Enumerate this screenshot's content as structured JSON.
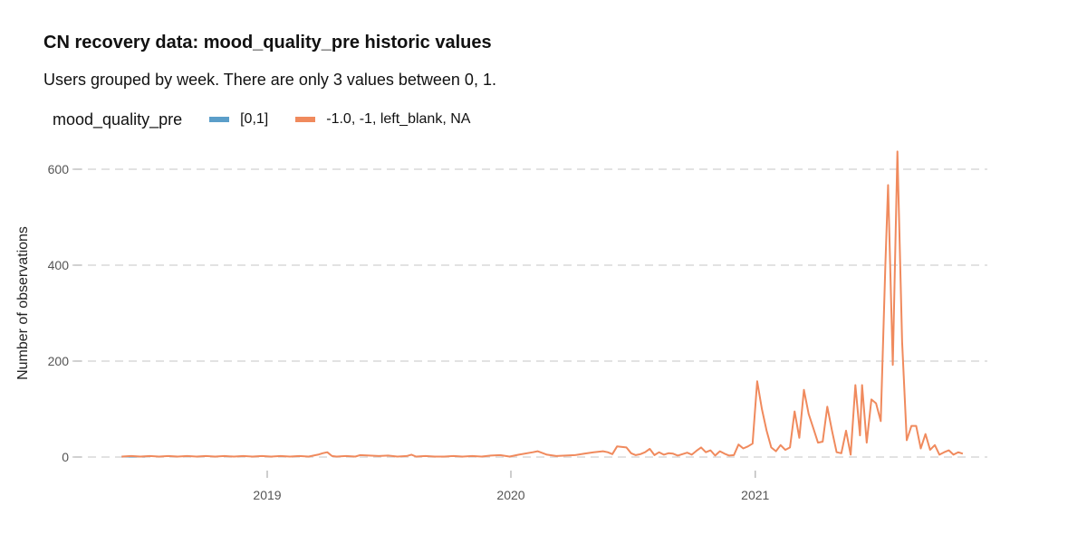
{
  "title": "CN recovery data: mood_quality_pre historic values",
  "subtitle": "Users grouped by week. There are only 3 values between 0, 1.",
  "legend": {
    "title": "mood_quality_pre",
    "items": [
      {
        "label": "[0,1]",
        "color": "#5B9EC9"
      },
      {
        "label": "-1.0, -1, left_blank, NA",
        "color": "#F08A5D"
      }
    ]
  },
  "chart_data": {
    "type": "line",
    "title": "CN recovery data: mood_quality_pre historic values",
    "ylabel": "Number of observations",
    "xlabel": "",
    "ylim": [
      0,
      640
    ],
    "yticks": [
      0,
      200,
      400,
      600
    ],
    "xticks": [
      "2019",
      "2020",
      "2021"
    ],
    "grid": "horizontal dashed",
    "legend_position": "top-left",
    "series": [
      {
        "name": "[0,1]",
        "color": "#5B9EC9",
        "points": [
          [
            "2018-05-28",
            1
          ],
          [
            "2018-06-25",
            1
          ],
          [
            "2018-07-02",
            1
          ]
        ]
      },
      {
        "name": "-1.0, -1, left_blank, NA",
        "color": "#F08A5D",
        "points": [
          [
            "2018-05-28",
            1
          ],
          [
            "2018-06-11",
            2
          ],
          [
            "2018-06-25",
            1
          ],
          [
            "2018-07-09",
            2
          ],
          [
            "2018-07-23",
            1
          ],
          [
            "2018-08-06",
            2
          ],
          [
            "2018-08-20",
            1
          ],
          [
            "2018-09-03",
            2
          ],
          [
            "2018-09-17",
            1
          ],
          [
            "2018-10-01",
            2
          ],
          [
            "2018-10-15",
            1
          ],
          [
            "2018-10-29",
            2
          ],
          [
            "2018-11-12",
            1
          ],
          [
            "2018-11-26",
            2
          ],
          [
            "2018-12-10",
            1
          ],
          [
            "2018-12-24",
            2
          ],
          [
            "2019-01-07",
            1
          ],
          [
            "2019-01-21",
            2
          ],
          [
            "2019-02-04",
            1
          ],
          [
            "2019-02-18",
            2
          ],
          [
            "2019-03-04",
            1
          ],
          [
            "2019-03-18",
            5
          ],
          [
            "2019-03-25",
            8
          ],
          [
            "2019-04-01",
            10
          ],
          [
            "2019-04-08",
            2
          ],
          [
            "2019-04-15",
            1
          ],
          [
            "2019-04-29",
            2
          ],
          [
            "2019-05-13",
            1
          ],
          [
            "2019-05-20",
            4
          ],
          [
            "2019-06-03",
            3
          ],
          [
            "2019-06-17",
            2
          ],
          [
            "2019-07-01",
            3
          ],
          [
            "2019-07-15",
            1
          ],
          [
            "2019-07-29",
            2
          ],
          [
            "2019-08-05",
            5
          ],
          [
            "2019-08-12",
            1
          ],
          [
            "2019-08-26",
            2
          ],
          [
            "2019-09-09",
            1
          ],
          [
            "2019-09-23",
            1
          ],
          [
            "2019-10-07",
            2
          ],
          [
            "2019-10-21",
            1
          ],
          [
            "2019-11-04",
            2
          ],
          [
            "2019-11-18",
            1
          ],
          [
            "2019-12-02",
            3
          ],
          [
            "2019-12-16",
            4
          ],
          [
            "2019-12-30",
            1
          ],
          [
            "2020-01-13",
            5
          ],
          [
            "2020-02-03",
            10
          ],
          [
            "2020-02-10",
            12
          ],
          [
            "2020-02-24",
            5
          ],
          [
            "2020-03-09",
            2
          ],
          [
            "2020-03-23",
            3
          ],
          [
            "2020-04-06",
            4
          ],
          [
            "2020-04-20",
            7
          ],
          [
            "2020-05-04",
            10
          ],
          [
            "2020-05-18",
            12
          ],
          [
            "2020-05-25",
            10
          ],
          [
            "2020-06-01",
            6
          ],
          [
            "2020-06-08",
            22
          ],
          [
            "2020-06-22",
            20
          ],
          [
            "2020-06-29",
            8
          ],
          [
            "2020-07-06",
            4
          ],
          [
            "2020-07-13",
            6
          ],
          [
            "2020-07-20",
            10
          ],
          [
            "2020-07-27",
            17
          ],
          [
            "2020-08-03",
            4
          ],
          [
            "2020-08-10",
            10
          ],
          [
            "2020-08-17",
            5
          ],
          [
            "2020-08-24",
            8
          ],
          [
            "2020-08-31",
            7
          ],
          [
            "2020-09-07",
            3
          ],
          [
            "2020-09-14",
            6
          ],
          [
            "2020-09-21",
            9
          ],
          [
            "2020-09-28",
            5
          ],
          [
            "2020-10-05",
            13
          ],
          [
            "2020-10-12",
            20
          ],
          [
            "2020-10-19",
            10
          ],
          [
            "2020-10-26",
            14
          ],
          [
            "2020-11-02",
            3
          ],
          [
            "2020-11-09",
            12
          ],
          [
            "2020-11-16",
            7
          ],
          [
            "2020-11-23",
            3
          ],
          [
            "2020-11-30",
            4
          ],
          [
            "2020-12-07",
            26
          ],
          [
            "2020-12-14",
            18
          ],
          [
            "2020-12-21",
            22
          ],
          [
            "2020-12-28",
            28
          ],
          [
            "2021-01-04",
            158
          ],
          [
            "2021-01-11",
            100
          ],
          [
            "2021-01-18",
            55
          ],
          [
            "2021-01-25",
            20
          ],
          [
            "2021-02-01",
            12
          ],
          [
            "2021-02-08",
            25
          ],
          [
            "2021-02-15",
            15
          ],
          [
            "2021-02-22",
            20
          ],
          [
            "2021-03-01",
            95
          ],
          [
            "2021-03-08",
            40
          ],
          [
            "2021-03-15",
            140
          ],
          [
            "2021-03-22",
            90
          ],
          [
            "2021-03-29",
            60
          ],
          [
            "2021-04-05",
            30
          ],
          [
            "2021-04-12",
            32
          ],
          [
            "2021-04-19",
            105
          ],
          [
            "2021-04-26",
            55
          ],
          [
            "2021-05-03",
            10
          ],
          [
            "2021-05-10",
            8
          ],
          [
            "2021-05-17",
            55
          ],
          [
            "2021-05-24",
            5
          ],
          [
            "2021-05-31",
            150
          ],
          [
            "2021-06-07",
            45
          ],
          [
            "2021-06-10",
            150
          ],
          [
            "2021-06-17",
            30
          ],
          [
            "2021-06-24",
            120
          ],
          [
            "2021-07-01",
            112
          ],
          [
            "2021-07-08",
            75
          ],
          [
            "2021-07-15",
            400
          ],
          [
            "2021-07-19",
            567
          ],
          [
            "2021-07-26",
            192
          ],
          [
            "2021-08-02",
            637
          ],
          [
            "2021-08-09",
            240
          ],
          [
            "2021-08-16",
            35
          ],
          [
            "2021-08-23",
            65
          ],
          [
            "2021-08-30",
            65
          ],
          [
            "2021-09-06",
            18
          ],
          [
            "2021-09-13",
            48
          ],
          [
            "2021-09-20",
            15
          ],
          [
            "2021-09-27",
            25
          ],
          [
            "2021-10-04",
            5
          ],
          [
            "2021-10-11",
            10
          ],
          [
            "2021-10-18",
            14
          ],
          [
            "2021-10-25",
            5
          ],
          [
            "2021-11-01",
            10
          ],
          [
            "2021-11-08",
            7
          ]
        ]
      }
    ]
  }
}
